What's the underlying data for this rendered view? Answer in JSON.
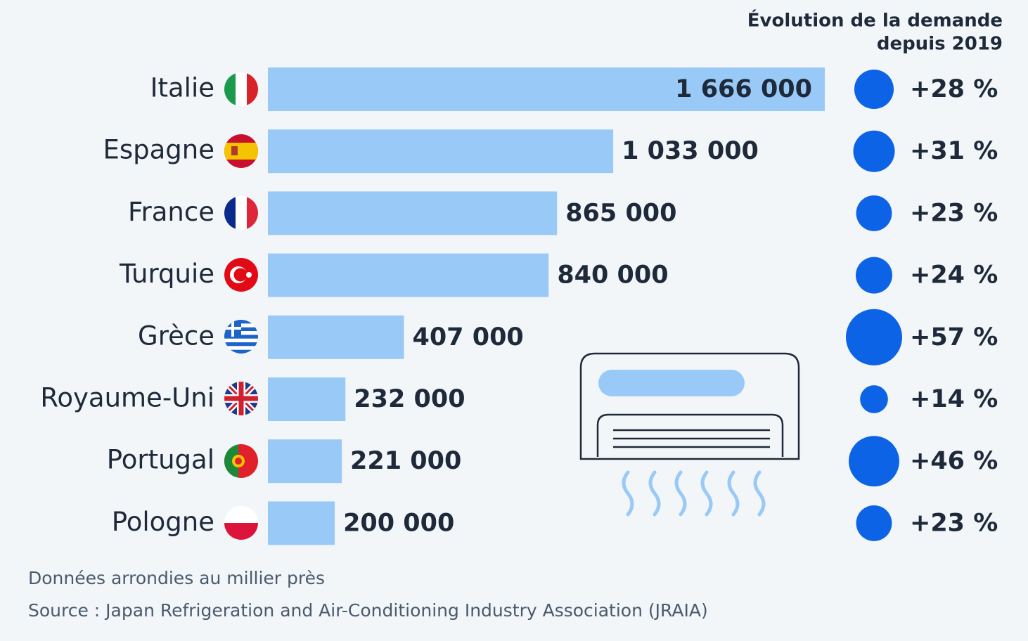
{
  "chart_data": {
    "type": "bar",
    "categories": [
      "Italie",
      "Espagne",
      "France",
      "Turquie",
      "Grèce",
      "Royaume-Uni",
      "Portugal",
      "Pologne"
    ],
    "values": [
      1666000,
      1033000,
      865000,
      840000,
      407000,
      232000,
      221000,
      200000
    ],
    "value_labels": [
      "1 666 000",
      "1 033 000",
      "865 000",
      "840 000",
      "407 000",
      "232 000",
      "221 000",
      "200 000"
    ],
    "color": "#99caf7",
    "growth_title": [
      "Évolution de la demande",
      "depuis 2019"
    ],
    "growth_values": [
      28,
      31,
      23,
      24,
      57,
      14,
      46,
      23
    ],
    "growth_labels": [
      "+28 %",
      "+31 %",
      "+23 %",
      "+24 %",
      "+57 %",
      "+14 %",
      "+46 %",
      "+23 %"
    ],
    "growth_color": "#0d63e6",
    "notes": [
      "Données arrondies au millier près",
      "Source : Japan Refrigeration and Air-Conditioning Industry Association (JRAIA)"
    ]
  }
}
